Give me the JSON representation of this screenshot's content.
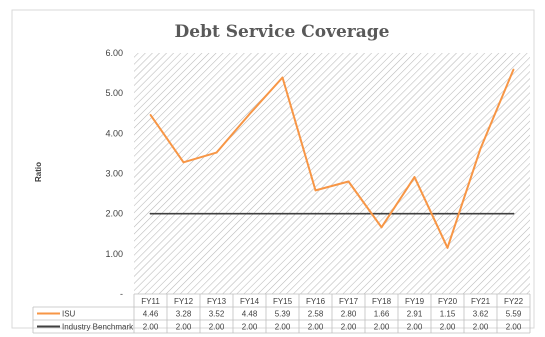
{
  "chart_data": {
    "type": "line",
    "title": "Debt Service Coverage",
    "ylabel": "Ratio",
    "xlabel": "",
    "categories": [
      "FY11",
      "FY12",
      "FY13",
      "FY14",
      "FY15",
      "FY16",
      "FY17",
      "FY18",
      "FY19",
      "FY20",
      "FY21",
      "FY22"
    ],
    "ylim": [
      0,
      6
    ],
    "yticks": [
      "-",
      "1.00",
      "2.00",
      "3.00",
      "4.00",
      "5.00",
      "6.00"
    ],
    "grid": false,
    "plot_background": "diagonal hatch",
    "legend": "data table below chart",
    "series": [
      {
        "name": "ISU",
        "color": "#F79646",
        "values": [
          4.46,
          3.28,
          3.52,
          4.48,
          5.39,
          2.58,
          2.8,
          1.66,
          2.91,
          1.15,
          3.62,
          5.59
        ],
        "labels": [
          "4.46",
          "3.28",
          "3.52",
          "4.48",
          "5.39",
          "2.58",
          "2.80",
          "1.66",
          "2.91",
          "1.15",
          "3.62",
          "5.59"
        ]
      },
      {
        "name": "Industry Benchmark",
        "color": "#404040",
        "values": [
          2.0,
          2.0,
          2.0,
          2.0,
          2.0,
          2.0,
          2.0,
          2.0,
          2.0,
          2.0,
          2.0,
          2.0
        ],
        "labels": [
          "2.00",
          "2.00",
          "2.00",
          "2.00",
          "2.00",
          "2.00",
          "2.00",
          "2.00",
          "2.00",
          "2.00",
          "2.00",
          "2.00"
        ]
      }
    ]
  }
}
